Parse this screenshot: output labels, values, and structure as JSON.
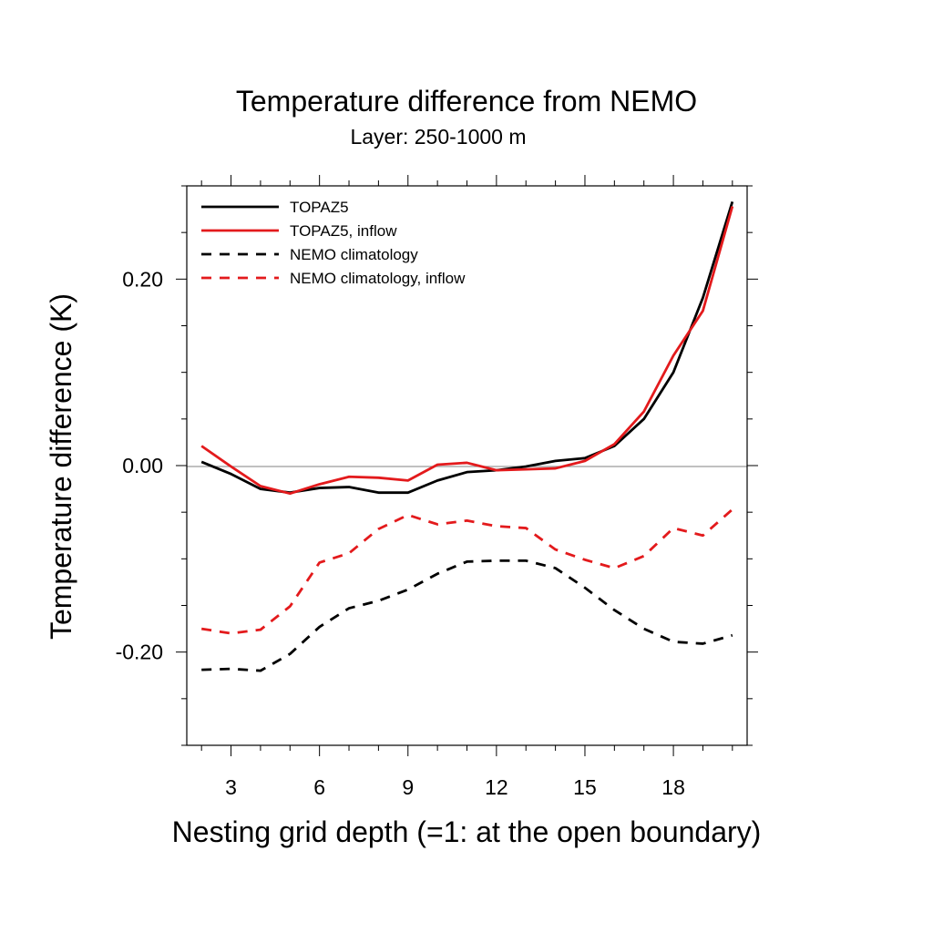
{
  "chart_data": {
    "type": "line",
    "title": "Temperature difference from NEMO",
    "subtitle": "Layer: 250-1000 m",
    "xlabel": "Nesting grid depth (=1: at the open boundary)",
    "ylabel": "Temperature difference (K)",
    "xlim": [
      1.5,
      20.5
    ],
    "ylim": [
      -0.3,
      0.3
    ],
    "x_ticks": [
      3,
      6,
      9,
      12,
      15,
      18
    ],
    "x_tick_labels": [
      "3",
      "6",
      "9",
      "12",
      "15",
      "18"
    ],
    "y_ticks": [
      -0.2,
      0.0,
      0.2
    ],
    "y_tick_labels": [
      "-0.20",
      "0.00",
      "0.20"
    ],
    "zero_line": true,
    "grid": false,
    "legend_position": "top-left",
    "x": [
      2,
      3,
      4,
      5,
      6,
      7,
      8,
      9,
      10,
      11,
      12,
      13,
      14,
      15,
      16,
      17,
      18,
      19,
      20
    ],
    "series": [
      {
        "name": "TOPAZ5",
        "color": "#000000",
        "dash": "solid",
        "values": [
          0.004,
          -0.009,
          -0.025,
          -0.029,
          -0.024,
          -0.023,
          -0.029,
          -0.029,
          -0.016,
          -0.007,
          -0.005,
          -0.001,
          0.005,
          0.008,
          0.021,
          0.05,
          0.1,
          0.18,
          0.283
        ]
      },
      {
        "name": "TOPAZ5, inflow",
        "color": "#e31a1c",
        "dash": "solid",
        "values": [
          0.021,
          -0.001,
          -0.022,
          -0.03,
          -0.02,
          -0.012,
          -0.013,
          -0.016,
          0.001,
          0.003,
          -0.005,
          -0.004,
          -0.003,
          0.005,
          0.023,
          0.058,
          0.118,
          0.166,
          0.278
        ]
      },
      {
        "name": "NEMO climatology",
        "color": "#000000",
        "dash": "dashed",
        "values": [
          -0.219,
          -0.218,
          -0.22,
          -0.202,
          -0.173,
          -0.153,
          -0.145,
          -0.133,
          -0.116,
          -0.103,
          -0.102,
          -0.102,
          -0.11,
          -0.131,
          -0.155,
          -0.175,
          -0.189,
          -0.191,
          -0.182
        ]
      },
      {
        "name": "NEMO climatology, inflow",
        "color": "#e31a1c",
        "dash": "dashed",
        "values": [
          -0.175,
          -0.18,
          -0.176,
          -0.151,
          -0.104,
          -0.094,
          -0.068,
          -0.053,
          -0.063,
          -0.059,
          -0.065,
          -0.067,
          -0.09,
          -0.101,
          -0.11,
          -0.097,
          -0.067,
          -0.075,
          -0.047
        ]
      }
    ]
  }
}
